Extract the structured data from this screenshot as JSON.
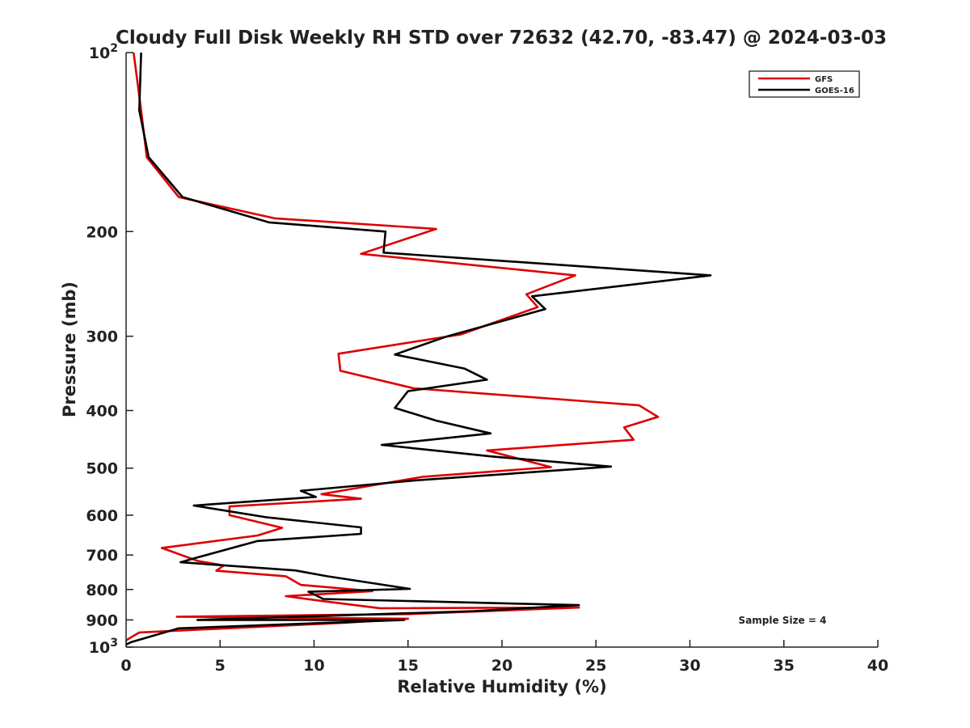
{
  "chart_data": {
    "type": "line",
    "title": "Cloudy Full Disk Weekly RH STD over 72632 (42.70, -83.47) @ 2024-03-03",
    "xlabel": "Relative Humidity (%)",
    "ylabel": "Pressure (mb)",
    "xlim": [
      0,
      40
    ],
    "ylim": [
      100,
      1000
    ],
    "y_scale": "log",
    "y_reversed": true,
    "grid": false,
    "legend_position": "top-right",
    "x_ticks": [
      "0",
      "5",
      "10",
      "15",
      "20",
      "25",
      "30",
      "35",
      "40"
    ],
    "y_ticks": [
      {
        "value": 100,
        "base": "10",
        "exp": "2"
      },
      {
        "value": 200,
        "label": "200"
      },
      {
        "value": 300,
        "label": "300"
      },
      {
        "value": 400,
        "label": "400"
      },
      {
        "value": 500,
        "label": "500"
      },
      {
        "value": 600,
        "label": "600"
      },
      {
        "value": 700,
        "label": "700"
      },
      {
        "value": 800,
        "label": "800"
      },
      {
        "value": 900,
        "label": "900"
      },
      {
        "value": 1000,
        "base": "10",
        "exp": "3"
      }
    ],
    "annotation": "Sample Size = 4",
    "series": [
      {
        "name": "GFS",
        "color": "#dd0000",
        "points": [
          [
            0.4,
            100
          ],
          [
            0.8,
            125
          ],
          [
            1.1,
            150
          ],
          [
            2.8,
            175
          ],
          [
            7.9,
            190
          ],
          [
            16.5,
            198
          ],
          [
            12.5,
            218
          ],
          [
            23.9,
            237
          ],
          [
            21.3,
            255
          ],
          [
            21.9,
            268
          ],
          [
            17.8,
            298
          ],
          [
            11.3,
            321
          ],
          [
            11.4,
            343
          ],
          [
            15.3,
            367
          ],
          [
            27.3,
            392
          ],
          [
            28.3,
            410
          ],
          [
            26.5,
            427
          ],
          [
            27.0,
            448
          ],
          [
            19.2,
            467
          ],
          [
            22.6,
            498
          ],
          [
            15.8,
            517
          ],
          [
            10.4,
            553
          ],
          [
            12.5,
            563
          ],
          [
            5.5,
            580
          ],
          [
            5.5,
            600
          ],
          [
            8.3,
            630
          ],
          [
            7.0,
            649
          ],
          [
            1.9,
            681
          ],
          [
            3.8,
            716
          ],
          [
            5.2,
            729
          ],
          [
            4.8,
            744
          ],
          [
            8.5,
            760
          ],
          [
            9.3,
            786
          ],
          [
            13.1,
            805
          ],
          [
            8.5,
            821
          ],
          [
            10.5,
            837
          ],
          [
            13.5,
            860
          ],
          [
            24.1,
            858
          ],
          [
            15.0,
            880
          ],
          [
            2.7,
            889
          ],
          [
            15.0,
            896
          ],
          [
            11.6,
            910
          ],
          [
            0.7,
            945
          ],
          [
            0,
            974
          ]
        ]
      },
      {
        "name": "GOES-16",
        "color": "#000000",
        "points": [
          [
            0.8,
            100
          ],
          [
            0.7,
            125
          ],
          [
            1.2,
            150
          ],
          [
            3.0,
            175
          ],
          [
            7.6,
            193
          ],
          [
            13.8,
            200
          ],
          [
            13.7,
            217
          ],
          [
            31.1,
            237
          ],
          [
            21.6,
            257
          ],
          [
            22.3,
            270
          ],
          [
            17.1,
            300
          ],
          [
            14.3,
            322
          ],
          [
            18.0,
            340
          ],
          [
            19.2,
            355
          ],
          [
            15.0,
            371
          ],
          [
            14.3,
            396
          ],
          [
            16.5,
            416
          ],
          [
            19.4,
            437
          ],
          [
            13.6,
            457
          ],
          [
            19.5,
            478
          ],
          [
            25.8,
            497
          ],
          [
            15.5,
            524
          ],
          [
            9.3,
            546
          ],
          [
            10.1,
            559
          ],
          [
            3.6,
            578
          ],
          [
            7.5,
            605
          ],
          [
            12.5,
            629
          ],
          [
            12.5,
            645
          ],
          [
            7.0,
            663
          ],
          [
            3.7,
            708
          ],
          [
            2.9,
            720
          ],
          [
            9.0,
            743
          ],
          [
            10.7,
            760
          ],
          [
            15.1,
            798
          ],
          [
            9.7,
            807
          ],
          [
            10.5,
            830
          ],
          [
            24.1,
            850
          ],
          [
            18.5,
            870
          ],
          [
            3.8,
            900
          ],
          [
            14.8,
            900
          ],
          [
            2.8,
            930
          ],
          [
            0.3,
            980
          ],
          [
            0,
            990
          ]
        ]
      }
    ]
  }
}
